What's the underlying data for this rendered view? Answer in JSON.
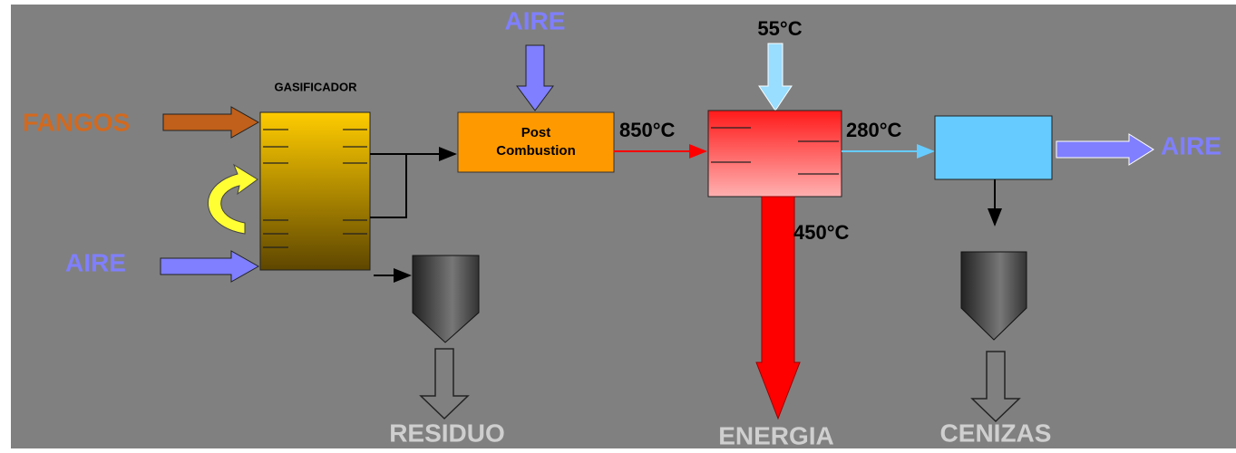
{
  "gasifier": {
    "label": "GASIFICADOR"
  },
  "post_combustion": {
    "label_lines": [
      "Post",
      "Combustion"
    ]
  },
  "inputs": {
    "sludge": "FANGOS",
    "air_gasifier": "AIRE",
    "air_post_combustion": "AIRE"
  },
  "temperatures": {
    "post_combustion_out": "850°C",
    "water_in": "55°C",
    "exchanger_out": "280°C",
    "energy_out": "450°C"
  },
  "outputs": {
    "air": "AIRE",
    "residue": "RESIDUO",
    "energy": "ENERGIA",
    "ashes": "CENIZAS"
  }
}
